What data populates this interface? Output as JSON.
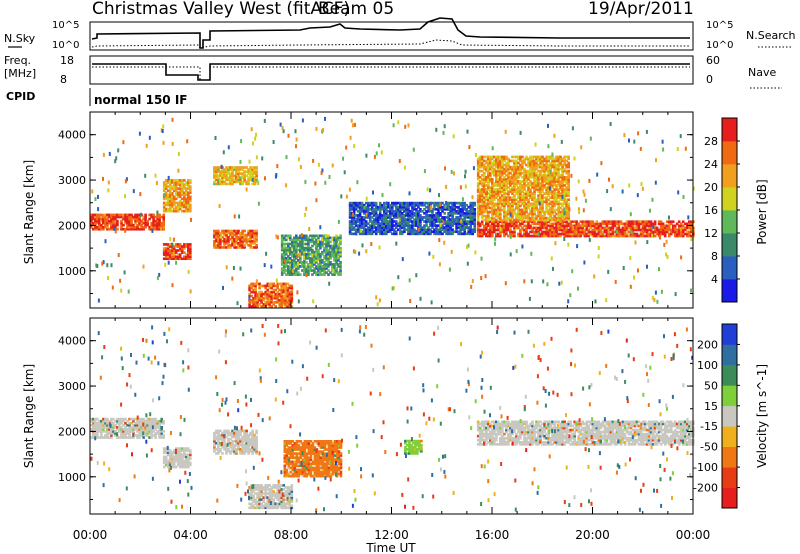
{
  "header": {
    "station": "Christmas Valley West (fitACF)",
    "beam": "Beam 05",
    "date": "19/Apr/2011"
  },
  "top_panels": {
    "nsky_label": "N.Sky",
    "nsky_ticks": [
      "10^5",
      "10^0"
    ],
    "nsearch_label": "N.Search",
    "nsearch_ticks": [
      "10^5",
      "10^0"
    ],
    "freq_label": "Freq.",
    "freq_unit": "[MHz]",
    "freq_ticks": [
      "18",
      "8"
    ],
    "nave_label": "Nave",
    "nave_ticks": [
      "60",
      "0"
    ],
    "cpid_label": "CPID",
    "cpid_text": "normal 150 IF"
  },
  "axes": {
    "xlabel": "Time UT",
    "ylabel_power": "Slant Range [km]",
    "ylabel_velocity": "Slant Range [km]",
    "x_ticks": [
      "00:00",
      "04:00",
      "08:00",
      "12:00",
      "16:00",
      "20:00",
      "00:00"
    ],
    "y_ticks": [
      "1000",
      "2000",
      "3000",
      "4000"
    ]
  },
  "colorbars": {
    "power": {
      "label": "Power [dB]",
      "ticks": [
        "4",
        "8",
        "12",
        "16",
        "20",
        "24",
        "28"
      ],
      "colors": [
        "#1a1ae6",
        "#2a5fc0",
        "#3a8a6a",
        "#5fb85a",
        "#cfd21e",
        "#f0a01e",
        "#f06a14",
        "#e61e1e"
      ]
    },
    "velocity": {
      "label": "Velocity [m s^-1]",
      "ticks": [
        "200",
        "100",
        "50",
        "15",
        "-15",
        "-50",
        "-100",
        "-200"
      ],
      "colors": [
        "#1f3fd6",
        "#2f6fa0",
        "#3c8c5a",
        "#7fcf3a",
        "#c8c8c0",
        "#f0b01e",
        "#f07814",
        "#e83c14",
        "#e61e1e"
      ]
    }
  },
  "chart_data": [
    {
      "type": "heatmap",
      "title": "Power",
      "xlabel": "Time UT",
      "ylabel": "Slant Range [km]",
      "xlim": [
        0,
        24
      ],
      "ylim": [
        180,
        4500
      ],
      "colorbar": "Power [dB]",
      "regions": [
        {
          "t": [
            0.0,
            2.9
          ],
          "range": [
            1900,
            2250
          ],
          "value": 28
        },
        {
          "t": [
            2.9,
            4.0
          ],
          "range": [
            1250,
            1600
          ],
          "value": 28
        },
        {
          "t": [
            2.9,
            4.0
          ],
          "range": [
            2300,
            3000
          ],
          "value": 22
        },
        {
          "t": [
            4.9,
            6.6
          ],
          "range": [
            1500,
            1900
          ],
          "value": 26
        },
        {
          "t": [
            4.9,
            6.6
          ],
          "range": [
            2900,
            3300
          ],
          "value": 20
        },
        {
          "t": [
            6.3,
            8.0
          ],
          "range": [
            200,
            700
          ],
          "value": 26
        },
        {
          "t": [
            7.6,
            10.0
          ],
          "range": [
            900,
            1800
          ],
          "value": 12
        },
        {
          "t": [
            10.3,
            15.3
          ],
          "range": [
            1800,
            2500
          ],
          "value": 6
        },
        {
          "t": [
            15.4,
            24.0
          ],
          "range": [
            1750,
            2100
          ],
          "value": 28
        },
        {
          "t": [
            15.4,
            19.0
          ],
          "range": [
            2100,
            3500
          ],
          "value": 22
        }
      ]
    },
    {
      "type": "heatmap",
      "title": "Velocity",
      "xlabel": "Time UT",
      "ylabel": "Slant Range [km]",
      "xlim": [
        0,
        24
      ],
      "ylim": [
        180,
        4500
      ],
      "colorbar": "Velocity [m s^-1]",
      "regions": [
        {
          "t": [
            0.0,
            2.9
          ],
          "range": [
            1850,
            2300
          ],
          "value": 0
        },
        {
          "t": [
            2.9,
            4.0
          ],
          "range": [
            1200,
            1650
          ],
          "value": 0
        },
        {
          "t": [
            4.9,
            6.6
          ],
          "range": [
            1500,
            2000
          ],
          "value": 0
        },
        {
          "t": [
            6.3,
            8.0
          ],
          "range": [
            300,
            800
          ],
          "value": 0
        },
        {
          "t": [
            7.7,
            10.0
          ],
          "range": [
            1000,
            1800
          ],
          "value": -60
        },
        {
          "t": [
            12.5,
            13.2
          ],
          "range": [
            1500,
            1800
          ],
          "value": 40
        },
        {
          "t": [
            15.4,
            24.0
          ],
          "range": [
            1700,
            2200
          ],
          "value": 0
        }
      ]
    }
  ]
}
